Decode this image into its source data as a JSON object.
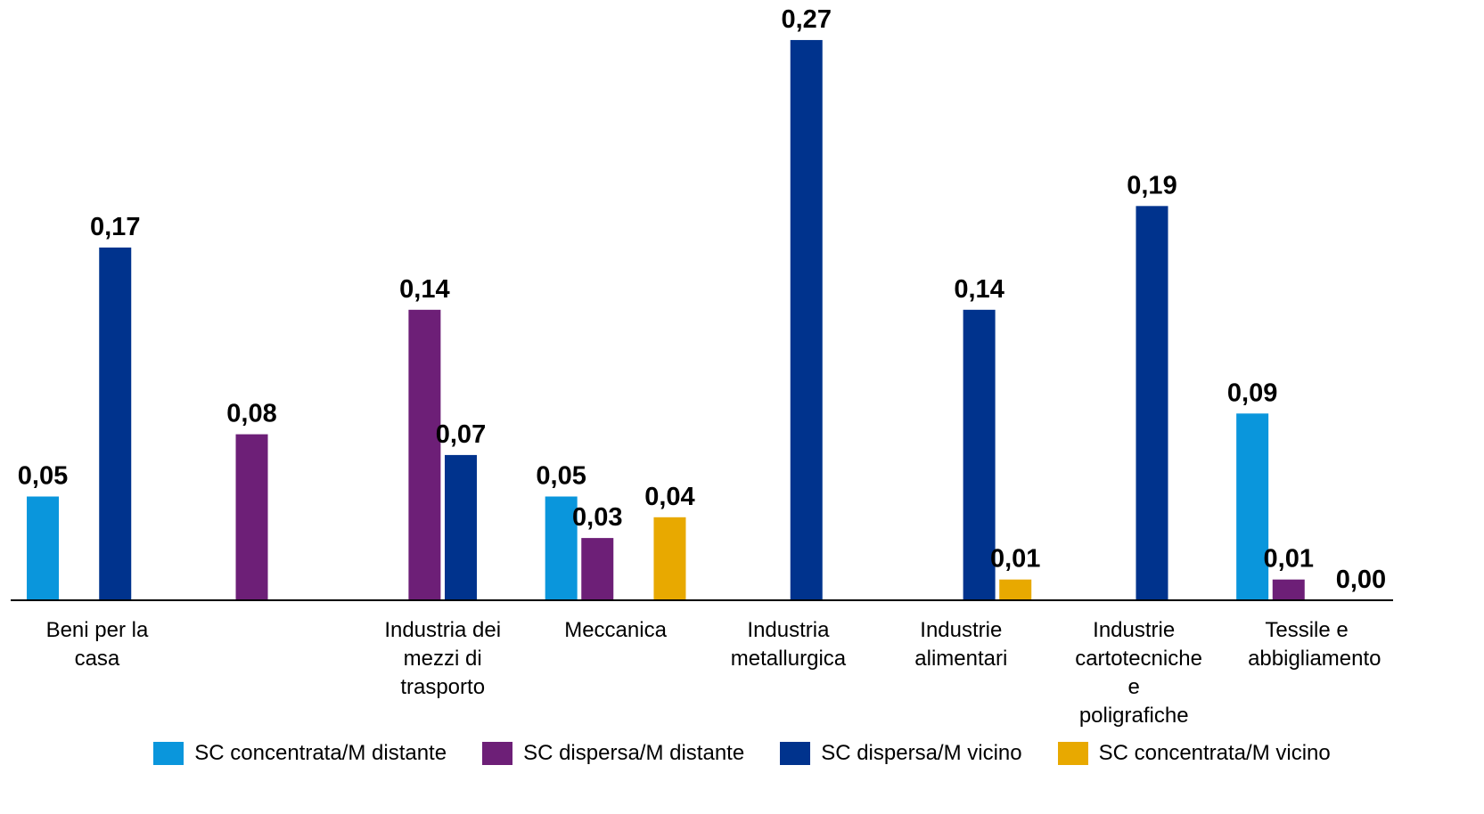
{
  "chart_data": {
    "type": "bar",
    "categories": [
      "Beni per la casa",
      null,
      "Industria dei mezzi di trasporto",
      "Meccanica",
      "Industria metallurgica",
      "Industrie alimentari",
      "Industrie cartotecniche e poligrafiche",
      "Tessile e abbigliamento"
    ],
    "series": [
      {
        "name": "SC concentrata/M distante",
        "color": "#0a96dc",
        "values": [
          0.05,
          null,
          null,
          0.05,
          null,
          null,
          null,
          0.09
        ],
        "value_labels": [
          "0,05",
          null,
          null,
          "0,05",
          null,
          null,
          null,
          "0,09"
        ]
      },
      {
        "name": "SC dispersa/M distante",
        "color": "#6d1f77",
        "values": [
          null,
          0.08,
          0.14,
          0.03,
          null,
          null,
          null,
          0.01
        ],
        "value_labels": [
          null,
          "0,08",
          "0,14",
          "0,03",
          null,
          null,
          null,
          "0,01"
        ]
      },
      {
        "name": "SC dispersa/M vicino",
        "color": "#00338d",
        "values": [
          0.17,
          null,
          0.07,
          null,
          0.27,
          0.14,
          0.19,
          null
        ],
        "value_labels": [
          "0,17",
          null,
          "0,07",
          null,
          "0,27",
          "0,14",
          "0,19",
          null
        ]
      },
      {
        "name": "SC concentrata/M vicino",
        "color": "#e8a900",
        "values": [
          null,
          null,
          null,
          0.04,
          null,
          0.01,
          null,
          0
        ],
        "value_labels": [
          null,
          null,
          null,
          "0,04",
          null,
          "0,01",
          null,
          "0,00"
        ]
      }
    ],
    "ylim": [
      0,
      0.285
    ],
    "legend": "bottom"
  }
}
